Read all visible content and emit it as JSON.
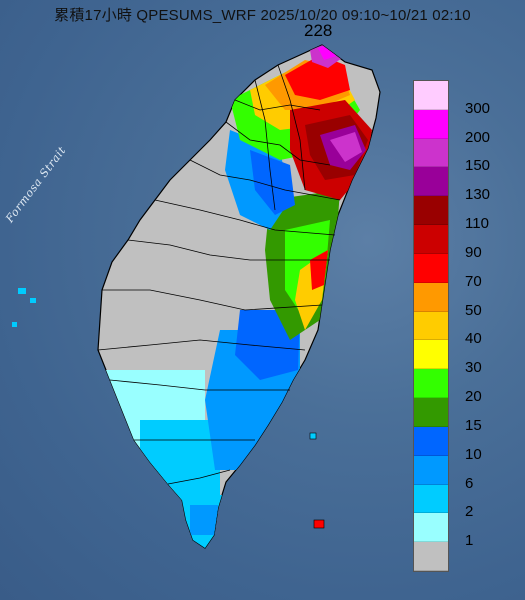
{
  "map": {
    "title": "累積17小時 QPESUMS_WRF 2025/10/20 09:10~10/21 02:10",
    "max_value": "228",
    "strait_label": "Formosa Strait"
  },
  "legend": {
    "items": [
      {
        "label": "300",
        "color": "#ffccff"
      },
      {
        "label": "200",
        "color": "#ff00ff"
      },
      {
        "label": "150",
        "color": "#cc33cc"
      },
      {
        "label": "130",
        "color": "#990099"
      },
      {
        "label": "110",
        "color": "#990000"
      },
      {
        "label": "90",
        "color": "#cc0000"
      },
      {
        "label": "70",
        "color": "#ff0000"
      },
      {
        "label": "50",
        "color": "#ff9900"
      },
      {
        "label": "40",
        "color": "#ffcc00"
      },
      {
        "label": "30",
        "color": "#ffff00"
      },
      {
        "label": "20",
        "color": "#33ff00"
      },
      {
        "label": "15",
        "color": "#339900"
      },
      {
        "label": "10",
        "color": "#0066ff"
      },
      {
        "label": "6",
        "color": "#0099ff"
      },
      {
        "label": "2",
        "color": "#00ccff"
      },
      {
        "label": "1",
        "color": "#99ffff"
      },
      {
        "label": "",
        "color": "#c0c0c0"
      }
    ]
  }
}
